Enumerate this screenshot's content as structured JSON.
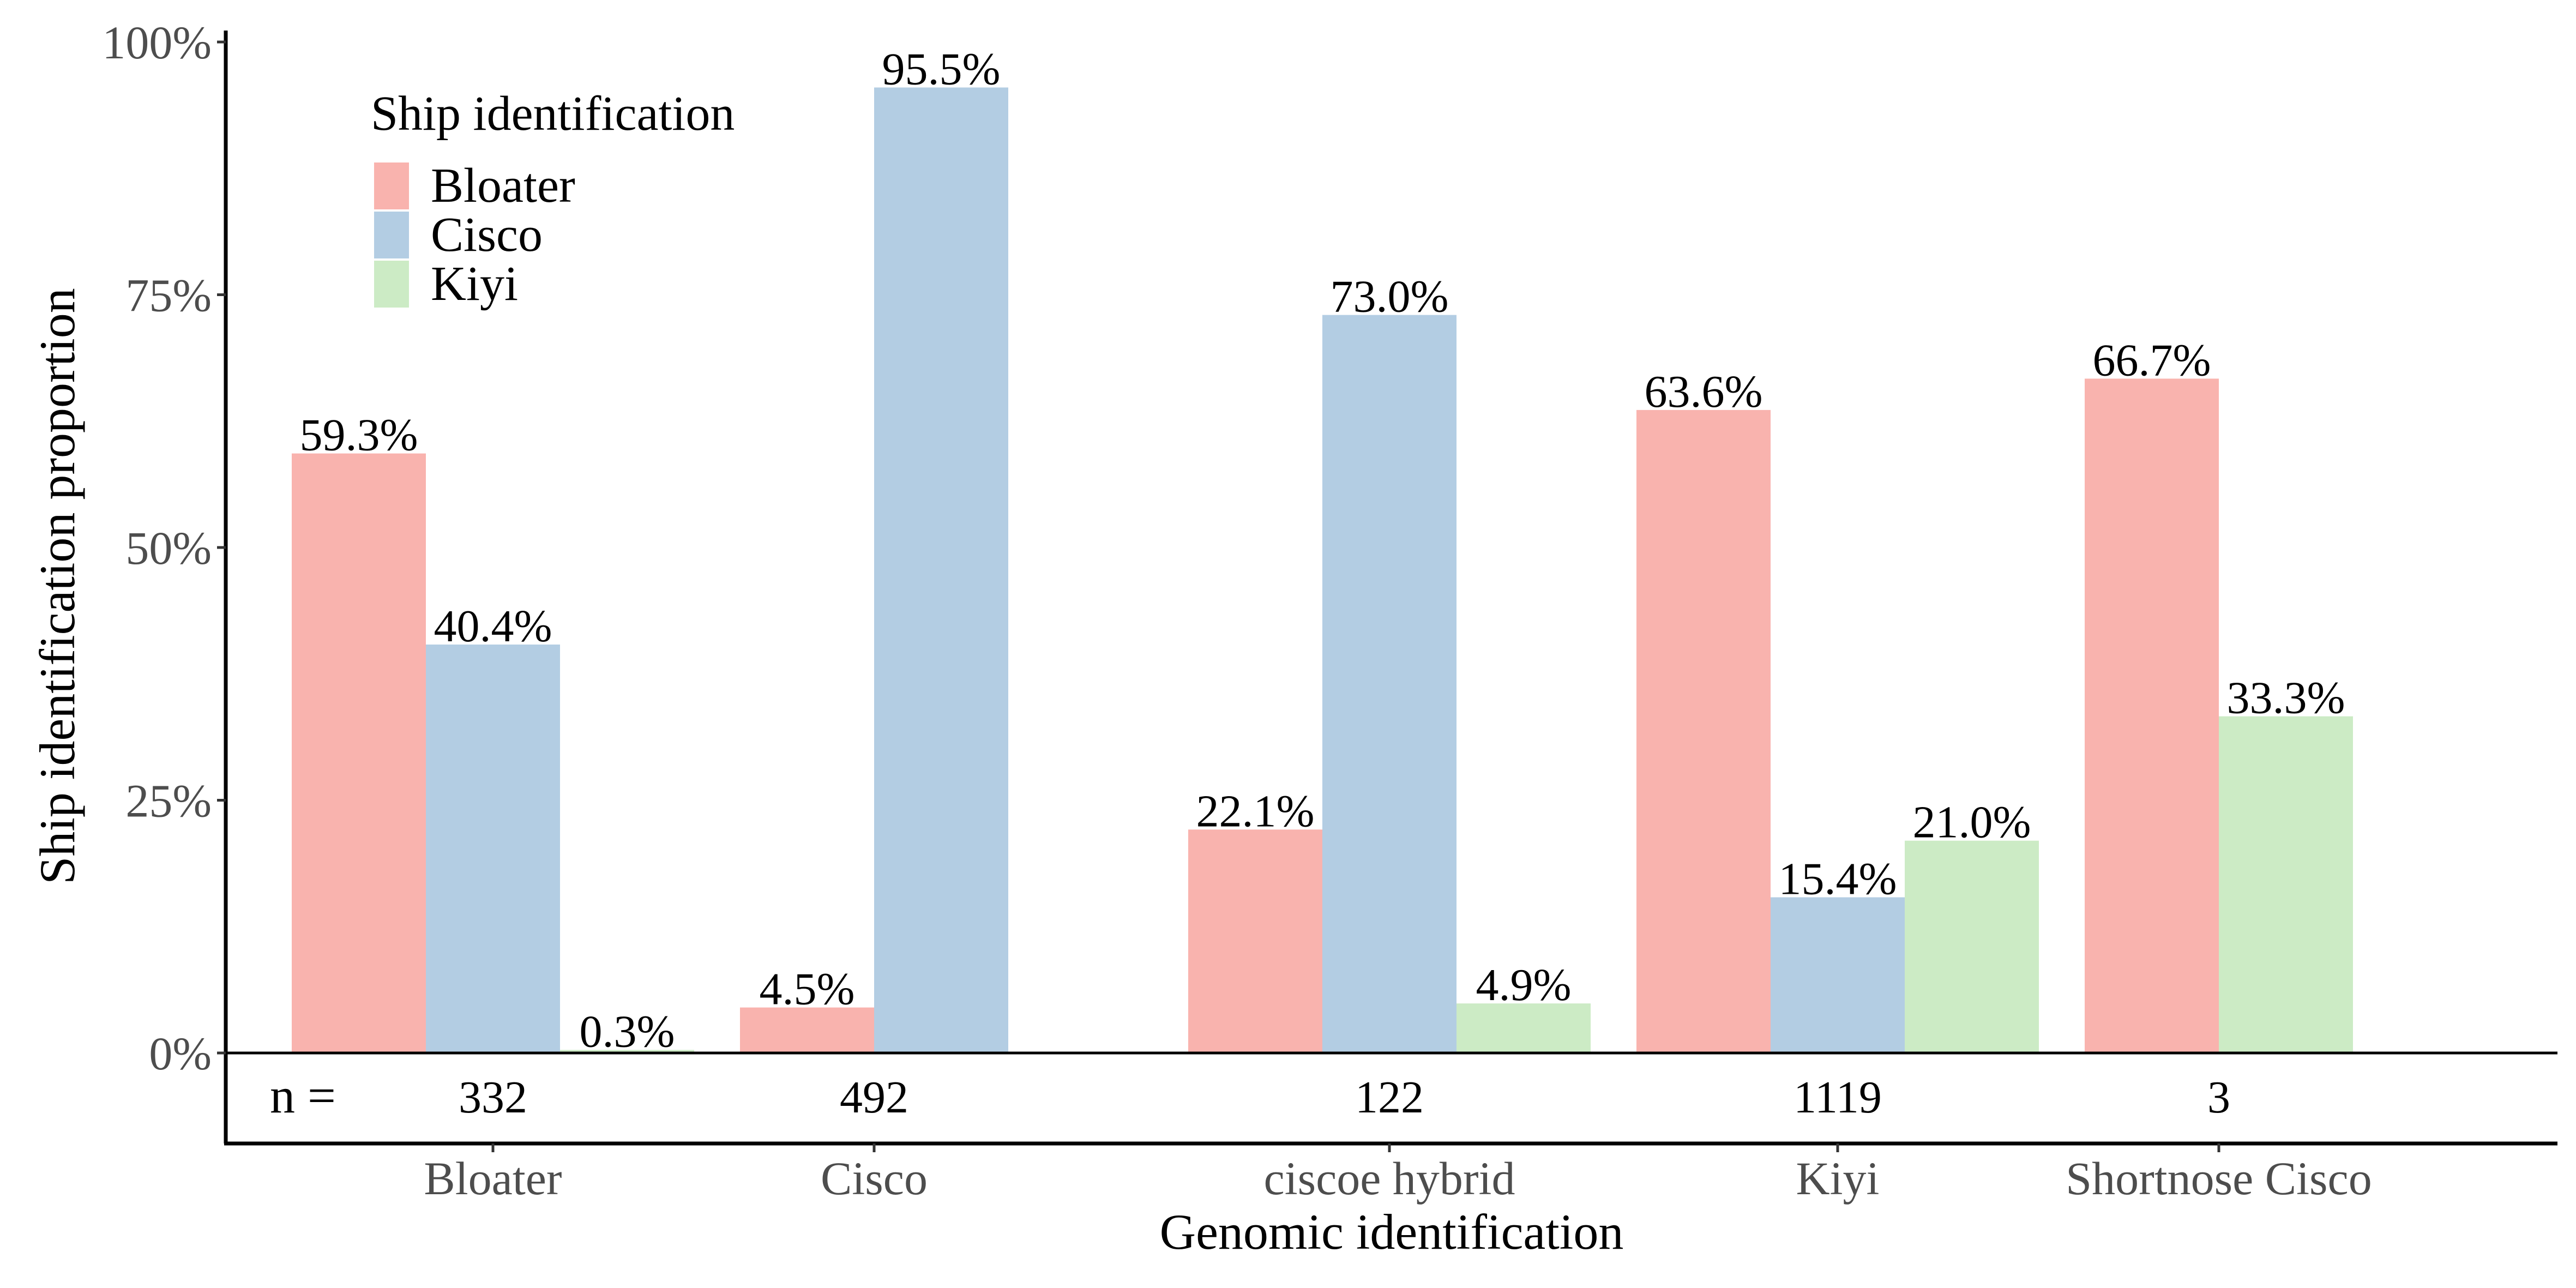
{
  "chart_data": {
    "type": "bar",
    "title": "",
    "xlabel": "Genomic identification",
    "ylabel": "Ship identification proportion",
    "ylim": [
      0,
      1
    ],
    "yticks": [
      0,
      0.25,
      0.5,
      0.75,
      1.0
    ],
    "ytick_labels": [
      "0%",
      "25%",
      "50%",
      "75%",
      "100%"
    ],
    "categories": [
      "Bloater",
      "Cisco",
      "ciscoe hybrid",
      "Kiyi",
      "Shortnose Cisco"
    ],
    "n_prefix": "n =",
    "n_values": [
      "332",
      "492",
      "122",
      "1119",
      "3"
    ],
    "legend": {
      "title": "Ship identification",
      "position": "top-left (inside plot)"
    },
    "grid": false,
    "series": [
      {
        "name": "Bloater",
        "color": "#F9B3AE",
        "values": [
          0.593,
          0.045,
          0.221,
          0.636,
          0.667
        ],
        "labels": [
          "59.3%",
          "4.5%",
          "22.1%",
          "63.6%",
          "66.7%"
        ]
      },
      {
        "name": "Cisco",
        "color": "#B3CDE3",
        "values": [
          0.404,
          0.955,
          0.73,
          0.154,
          null
        ],
        "labels": [
          "40.4%",
          "95.5%",
          "73.0%",
          "15.4%",
          null
        ]
      },
      {
        "name": "Kiyi",
        "color": "#CCEBC5",
        "values": [
          0.003,
          null,
          0.049,
          0.21,
          0.333
        ],
        "labels": [
          "0.3%",
          null,
          "4.9%",
          "21.0%",
          "33.3%"
        ]
      }
    ]
  }
}
